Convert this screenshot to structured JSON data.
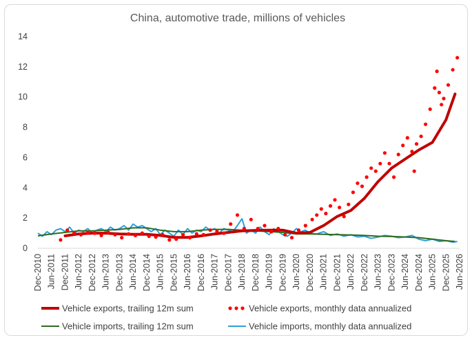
{
  "chart_data": {
    "type": "line",
    "title": "China, automotive trade, millions of vehicles",
    "xlabel": "",
    "ylabel": "",
    "ylim": [
      0,
      14
    ],
    "yticks": [
      "0",
      "2",
      "4",
      "6",
      "8",
      "10",
      "12",
      "14"
    ],
    "x_tick_labels": [
      "Dec-2010",
      "Jun-2011",
      "Dec-2011",
      "Jun-2012",
      "Dec-2012",
      "Jun-2013",
      "Dec-2013",
      "Jun-2014",
      "Dec-2014",
      "Jun-2015",
      "Dec-2015",
      "Jun-2016",
      "Dec-2016",
      "Jun-2017",
      "Dec-2017",
      "Jun-2018",
      "Dec-2018",
      "Jun-2019",
      "Dec-2019",
      "Jun-2020",
      "Dec-2020",
      "Jun-2021",
      "Dec-2021",
      "Jun-2022",
      "Dec-2022",
      "Jun-2023",
      "Dec-2023",
      "Jun-2024",
      "Dec-2024",
      "Jun-2025",
      "Dec-2025",
      "Jun-2026"
    ],
    "grid": false,
    "legend_position": "bottom",
    "colors": {
      "exports_trailing": "#c00000",
      "exports_monthly": "#ff0000",
      "imports_trailing": "#2e6b1e",
      "imports_monthly": "#2e9fd8"
    },
    "series": [
      {
        "name": "Vehicle exports, trailing 12m sum",
        "style": "thick-line",
        "x": [
          "2011-12",
          "2012-06",
          "2012-12",
          "2013-06",
          "2013-12",
          "2014-06",
          "2014-12",
          "2015-06",
          "2015-12",
          "2016-06",
          "2016-12",
          "2017-06",
          "2017-12",
          "2018-06",
          "2018-12",
          "2019-06",
          "2019-12",
          "2020-06",
          "2020-12",
          "2021-06",
          "2021-12",
          "2022-06",
          "2022-12",
          "2023-06",
          "2023-12",
          "2024-06",
          "2024-12",
          "2025-06",
          "2025-12",
          "2026-04"
        ],
        "values": [
          0.82,
          0.95,
          1.0,
          1.0,
          0.95,
          0.92,
          0.92,
          0.85,
          0.72,
          0.72,
          0.82,
          0.95,
          1.05,
          1.15,
          1.18,
          1.2,
          1.2,
          1.0,
          1.05,
          1.5,
          2.1,
          2.5,
          3.3,
          4.4,
          5.3,
          5.9,
          6.5,
          7.0,
          8.5,
          10.2
        ]
      },
      {
        "name": "Vehicle exports, monthly data annualized",
        "style": "dots",
        "x": [
          "2011-10",
          "2012-01",
          "2012-04",
          "2012-07",
          "2012-10",
          "2013-01",
          "2013-04",
          "2013-07",
          "2013-10",
          "2014-01",
          "2014-04",
          "2014-07",
          "2014-10",
          "2015-01",
          "2015-04",
          "2015-07",
          "2015-10",
          "2016-01",
          "2016-04",
          "2016-07",
          "2016-10",
          "2017-01",
          "2017-04",
          "2017-07",
          "2017-10",
          "2018-01",
          "2018-04",
          "2018-07",
          "2018-10",
          "2019-01",
          "2019-04",
          "2019-07",
          "2019-10",
          "2020-01",
          "2020-04",
          "2020-07",
          "2020-10",
          "2021-01",
          "2021-03",
          "2021-05",
          "2021-07",
          "2021-09",
          "2021-11",
          "2022-01",
          "2022-03",
          "2022-05",
          "2022-07",
          "2022-09",
          "2022-11",
          "2023-01",
          "2023-03",
          "2023-05",
          "2023-07",
          "2023-09",
          "2023-11",
          "2024-01",
          "2024-03",
          "2024-05",
          "2024-07",
          "2024-09",
          "2024-10",
          "2024-11",
          "2025-01",
          "2025-03",
          "2025-05",
          "2025-07",
          "2025-08",
          "2025-09",
          "2025-10",
          "2025-11",
          "2026-01",
          "2026-03",
          "2026-05"
        ],
        "values": [
          0.55,
          1.2,
          1.0,
          0.9,
          1.05,
          1.0,
          0.85,
          1.05,
          0.9,
          0.7,
          0.95,
          0.85,
          1.0,
          0.8,
          0.75,
          0.9,
          0.55,
          0.6,
          0.9,
          0.7,
          0.95,
          0.9,
          1.2,
          1.1,
          1.0,
          1.6,
          2.2,
          1.3,
          1.9,
          1.3,
          1.5,
          1.1,
          1.3,
          0.9,
          0.7,
          1.2,
          1.5,
          1.9,
          2.2,
          2.6,
          2.3,
          2.8,
          3.2,
          2.7,
          2.1,
          2.9,
          3.7,
          4.3,
          4.1,
          4.7,
          5.3,
          5.1,
          5.6,
          6.3,
          5.6,
          4.7,
          6.2,
          6.8,
          7.3,
          6.4,
          5.1,
          6.9,
          7.4,
          8.2,
          9.2,
          10.6,
          11.7,
          10.3,
          9.5,
          9.9,
          10.8,
          11.8,
          12.6
        ]
      },
      {
        "name": "Vehicle imports, trailing 12m sum",
        "style": "line",
        "x": [
          "2010-12",
          "2011-06",
          "2011-12",
          "2012-06",
          "2012-12",
          "2013-06",
          "2013-12",
          "2014-06",
          "2014-12",
          "2015-06",
          "2015-12",
          "2016-06",
          "2016-12",
          "2017-06",
          "2017-12",
          "2018-06",
          "2018-12",
          "2019-06",
          "2019-12",
          "2020-06",
          "2020-12",
          "2021-06",
          "2021-12",
          "2022-06",
          "2022-12",
          "2023-06",
          "2023-12",
          "2024-06",
          "2024-12",
          "2025-06",
          "2025-12",
          "2026-04"
        ],
        "values": [
          0.82,
          0.95,
          1.05,
          1.15,
          1.15,
          1.2,
          1.25,
          1.35,
          1.35,
          1.2,
          1.1,
          1.1,
          1.2,
          1.25,
          1.25,
          1.2,
          1.15,
          1.1,
          1.05,
          0.95,
          0.95,
          0.92,
          0.9,
          0.88,
          0.85,
          0.8,
          0.78,
          0.75,
          0.7,
          0.6,
          0.5,
          0.45
        ]
      },
      {
        "name": "Vehicle imports, monthly data annualized",
        "style": "line",
        "x": [
          "2010-12",
          "2011-02",
          "2011-04",
          "2011-06",
          "2011-08",
          "2011-10",
          "2011-12",
          "2012-02",
          "2012-04",
          "2012-06",
          "2012-08",
          "2012-10",
          "2012-12",
          "2013-02",
          "2013-04",
          "2013-06",
          "2013-08",
          "2013-10",
          "2013-12",
          "2014-02",
          "2014-04",
          "2014-06",
          "2014-08",
          "2014-10",
          "2014-12",
          "2015-02",
          "2015-04",
          "2015-06",
          "2015-08",
          "2015-10",
          "2015-12",
          "2016-02",
          "2016-04",
          "2016-06",
          "2016-08",
          "2016-10",
          "2016-12",
          "2017-02",
          "2017-04",
          "2017-06",
          "2017-08",
          "2017-10",
          "2017-12",
          "2018-02",
          "2018-04",
          "2018-06",
          "2018-08",
          "2018-10",
          "2018-12",
          "2019-02",
          "2019-04",
          "2019-06",
          "2019-08",
          "2019-10",
          "2019-12",
          "2020-02",
          "2020-04",
          "2020-06",
          "2020-08",
          "2020-10",
          "2020-12",
          "2021-03",
          "2021-06",
          "2021-09",
          "2021-12",
          "2022-03",
          "2022-06",
          "2022-09",
          "2022-12",
          "2023-03",
          "2023-06",
          "2023-09",
          "2023-12",
          "2024-03",
          "2024-06",
          "2024-09",
          "2024-12",
          "2025-03",
          "2025-06",
          "2025-09",
          "2025-12",
          "2026-03",
          "2026-05"
        ],
        "values": [
          1.0,
          0.8,
          1.1,
          0.9,
          1.2,
          1.3,
          1.1,
          1.4,
          1.0,
          1.2,
          1.1,
          1.3,
          1.0,
          1.2,
          1.3,
          1.1,
          1.4,
          1.2,
          1.3,
          1.5,
          1.2,
          1.6,
          1.4,
          1.5,
          1.3,
          1.1,
          1.3,
          0.9,
          1.2,
          1.0,
          0.8,
          1.2,
          0.9,
          1.3,
          1.0,
          1.2,
          1.1,
          1.4,
          1.2,
          1.3,
          1.0,
          1.3,
          1.2,
          1.1,
          1.5,
          1.95,
          1.0,
          1.2,
          1.0,
          1.4,
          1.1,
          0.9,
          1.3,
          1.1,
          0.9,
          0.8,
          1.0,
          1.3,
          1.1,
          1.2,
          1.0,
          0.95,
          1.1,
          0.85,
          0.95,
          0.8,
          0.9,
          0.75,
          0.8,
          0.65,
          0.75,
          0.85,
          0.8,
          0.7,
          0.75,
          0.85,
          0.6,
          0.5,
          0.6,
          0.45,
          0.5,
          0.4,
          0.45
        ]
      }
    ]
  }
}
